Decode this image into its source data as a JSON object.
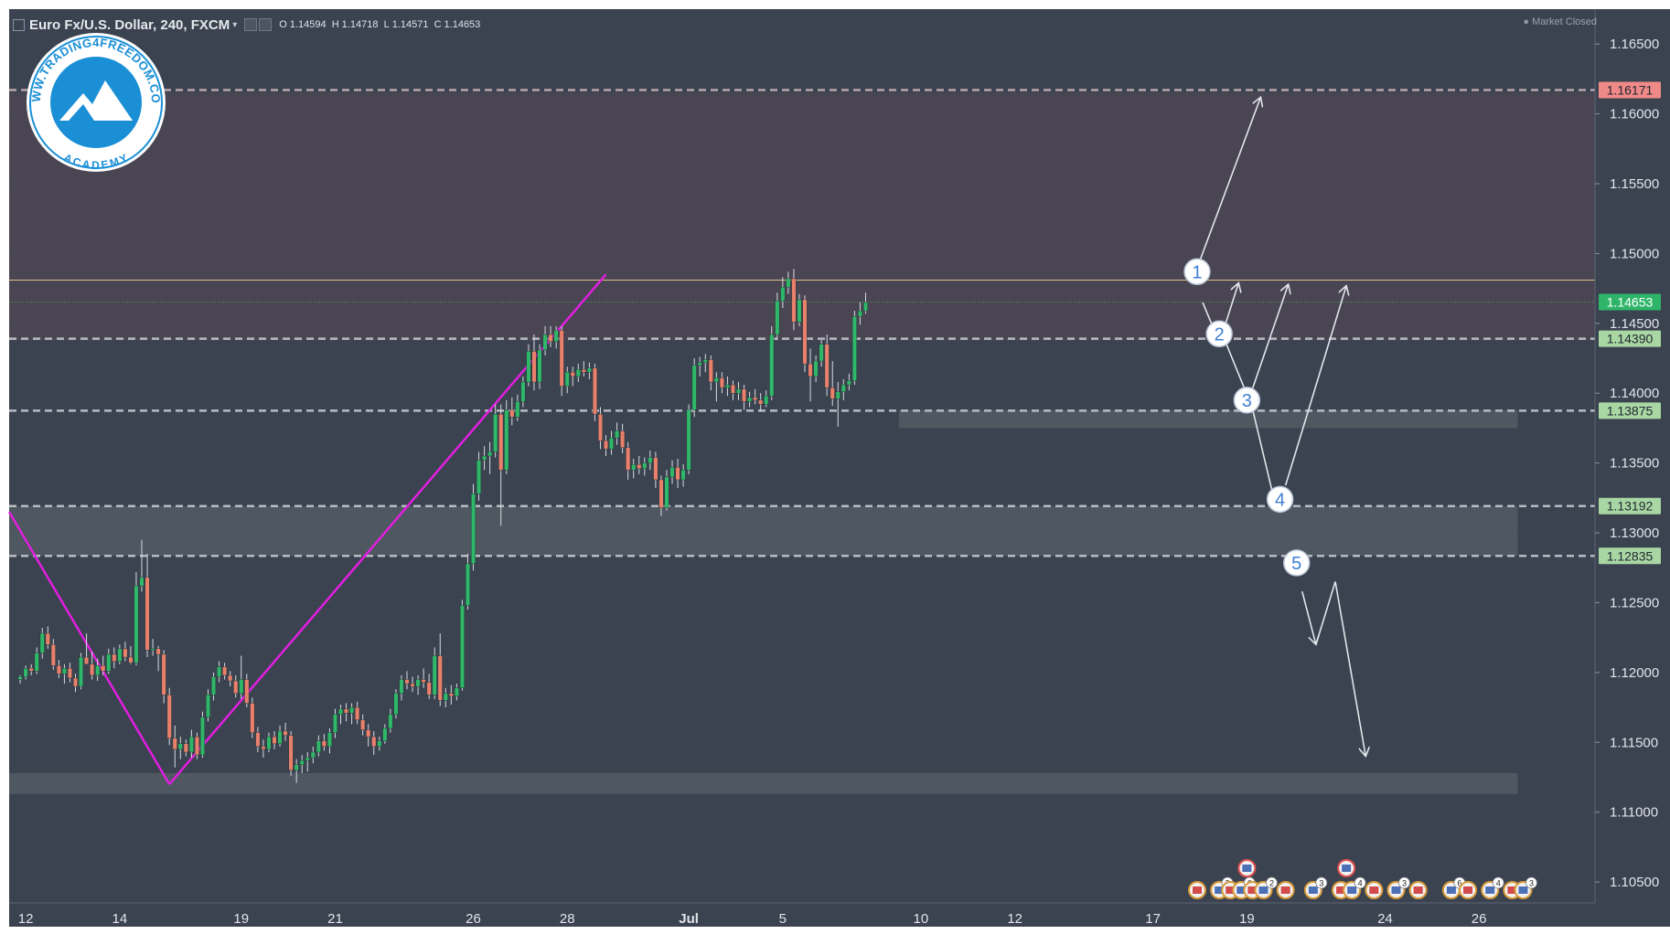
{
  "header": {
    "symbol": "Euro Fx/U.S. Dollar, 240, FXCM",
    "caret": "▾",
    "open_label": "O",
    "open_value": "1.14594",
    "high_label": "H",
    "high_value": "1.14718",
    "low_label": "L",
    "low_value": "1.14571",
    "close_label": "C",
    "close_value": "1.14653"
  },
  "market_status": {
    "dot": "●",
    "text": "Market Closed"
  },
  "logo": {
    "ring_text": "WWW.TRADING4FREEDOM.COM",
    "sub_text": "ACADEMY",
    "icon": "mountain-peaks-icon"
  },
  "colors": {
    "background": "#3b4350",
    "upper_zone": "#4a4552",
    "band_zone": "#505861",
    "candle_up": "#2fb76a",
    "candle_down": "#e8806c",
    "trendline": "#e21ee0",
    "arrows": "#e2e6ec",
    "resistance_line": "#d9c28a",
    "price_badge_red": "#f08a88",
    "price_badge_green": "#a9d7a3"
  },
  "chart_data": {
    "type": "candlestick",
    "title": "Euro Fx/U.S. Dollar, 240, FXCM",
    "ylim": [
      1.1035,
      1.1675
    ],
    "y_ticks": [
      "1.16500",
      "1.16000",
      "1.15500",
      "1.15000",
      "1.14500",
      "1.14000",
      "1.13500",
      "1.13000",
      "1.12500",
      "1.12000",
      "1.11500",
      "1.11000",
      "1.10500"
    ],
    "y_tick_values": [
      1.165,
      1.16,
      1.155,
      1.15,
      1.145,
      1.14,
      1.135,
      1.13,
      1.125,
      1.12,
      1.115,
      1.11,
      1.105
    ],
    "x_ticks": [
      {
        "label": "12",
        "bar": 1
      },
      {
        "label": "14",
        "bar": 18
      },
      {
        "label": "19",
        "bar": 40
      },
      {
        "label": "21",
        "bar": 57
      },
      {
        "label": "26",
        "bar": 82
      },
      {
        "label": "28",
        "bar": 99
      },
      {
        "label": "Jul",
        "bar": 121
      },
      {
        "label": "5",
        "bar": 138
      },
      {
        "label": "10",
        "bar": 163
      },
      {
        "label": "12",
        "bar": 180
      },
      {
        "label": "17",
        "bar": 205
      },
      {
        "label": "19",
        "bar": 222
      },
      {
        "label": "24",
        "bar": 247
      },
      {
        "label": "26",
        "bar": 264
      }
    ],
    "x_range_bars": [
      -2,
      285
    ],
    "price_levels": [
      {
        "value": 1.16171,
        "label": "1.16171",
        "style": "red"
      },
      {
        "value": 1.14653,
        "label": "1.14653",
        "style": "green-current"
      },
      {
        "value": 1.1439,
        "label": "1.14390",
        "style": "green"
      },
      {
        "value": 1.13875,
        "label": "1.13875",
        "style": "green"
      },
      {
        "value": 1.13192,
        "label": "1.13192",
        "style": "green"
      },
      {
        "value": 1.12835,
        "label": "1.12835",
        "style": "green"
      }
    ],
    "resistance_line": 1.1481,
    "zones": [
      {
        "from": 1.1481,
        "to": 1.1615,
        "kind": "upper"
      },
      {
        "from": 1.14375,
        "to": 1.1481,
        "kind": "upper"
      },
      {
        "from": 1.1375,
        "to": 1.1388,
        "kind": "band",
        "bar_from": 159,
        "bar_to": 271
      },
      {
        "from": 1.12835,
        "to": 1.1319,
        "kind": "band",
        "bar_from": -2,
        "bar_to": 271
      },
      {
        "from": 1.1113,
        "to": 1.1128,
        "kind": "band",
        "bar_from": -2,
        "bar_to": 271
      }
    ],
    "candles": [
      [
        1.1195,
        1.1198,
        1.1192,
        1.1197
      ],
      [
        1.1197,
        1.1205,
        1.1195,
        1.1203
      ],
      [
        1.1203,
        1.1206,
        1.1198,
        1.1201
      ],
      [
        1.1201,
        1.1218,
        1.1199,
        1.1214
      ],
      [
        1.1214,
        1.1232,
        1.121,
        1.1228
      ],
      [
        1.1228,
        1.1233,
        1.1217,
        1.122
      ],
      [
        1.122,
        1.1224,
        1.1202,
        1.1205
      ],
      [
        1.1205,
        1.1209,
        1.1196,
        1.1199
      ],
      [
        1.1199,
        1.1206,
        1.1192,
        1.1203
      ],
      [
        1.1203,
        1.1207,
        1.1193,
        1.1196
      ],
      [
        1.1196,
        1.1199,
        1.1186,
        1.119
      ],
      [
        1.119,
        1.1214,
        1.1188,
        1.1211
      ],
      [
        1.1211,
        1.1228,
        1.1209,
        1.1206
      ],
      [
        1.1206,
        1.1215,
        1.1195,
        1.1198
      ],
      [
        1.1198,
        1.121,
        1.1194,
        1.1205
      ],
      [
        1.1205,
        1.1212,
        1.1198,
        1.1201
      ],
      [
        1.1201,
        1.1217,
        1.1199,
        1.1213
      ],
      [
        1.1213,
        1.1218,
        1.1203,
        1.1208
      ],
      [
        1.1208,
        1.122,
        1.1206,
        1.1217
      ],
      [
        1.1217,
        1.1222,
        1.1208,
        1.1211
      ],
      [
        1.1211,
        1.1219,
        1.1206,
        1.1207
      ],
      [
        1.1207,
        1.1272,
        1.1205,
        1.1262
      ],
      [
        1.1262,
        1.1295,
        1.1258,
        1.1268
      ],
      [
        1.1268,
        1.1285,
        1.1211,
        1.1216
      ],
      [
        1.1216,
        1.1224,
        1.1212,
        1.1217
      ],
      [
        1.1217,
        1.1219,
        1.1201,
        1.1213
      ],
      [
        1.1213,
        1.1216,
        1.1178,
        1.1184
      ],
      [
        1.1184,
        1.1189,
        1.1148,
        1.1153
      ],
      [
        1.1153,
        1.1162,
        1.1132,
        1.1145
      ],
      [
        1.1145,
        1.1154,
        1.1138,
        1.1149
      ],
      [
        1.1149,
        1.1152,
        1.114,
        1.1143
      ],
      [
        1.1143,
        1.1159,
        1.1139,
        1.1154
      ],
      [
        1.1154,
        1.1157,
        1.1138,
        1.1141
      ],
      [
        1.1141,
        1.1172,
        1.1139,
        1.1168
      ],
      [
        1.1168,
        1.1188,
        1.1165,
        1.1184
      ],
      [
        1.1184,
        1.12,
        1.118,
        1.1197
      ],
      [
        1.1197,
        1.1208,
        1.1193,
        1.1204
      ],
      [
        1.1204,
        1.1207,
        1.1195,
        1.1198
      ],
      [
        1.1198,
        1.1201,
        1.119,
        1.1194
      ],
      [
        1.1194,
        1.1198,
        1.1182,
        1.1185
      ],
      [
        1.1185,
        1.1212,
        1.1181,
        1.1195
      ],
      [
        1.1195,
        1.1199,
        1.1175,
        1.1178
      ],
      [
        1.1178,
        1.1182,
        1.1153,
        1.1157
      ],
      [
        1.1157,
        1.1161,
        1.1143,
        1.1147
      ],
      [
        1.1147,
        1.1152,
        1.1139,
        1.1145
      ],
      [
        1.1145,
        1.1157,
        1.1143,
        1.1154
      ],
      [
        1.1154,
        1.1158,
        1.1145,
        1.1149
      ],
      [
        1.1149,
        1.1162,
        1.1147,
        1.1158
      ],
      [
        1.1158,
        1.1164,
        1.1151,
        1.1155
      ],
      [
        1.1155,
        1.1158,
        1.1126,
        1.113
      ],
      [
        1.113,
        1.1138,
        1.1121,
        1.1134
      ],
      [
        1.1134,
        1.1141,
        1.1128,
        1.1137
      ],
      [
        1.1137,
        1.1143,
        1.1129,
        1.1139
      ],
      [
        1.1139,
        1.1147,
        1.1135,
        1.1143
      ],
      [
        1.1143,
        1.1155,
        1.114,
        1.1151
      ],
      [
        1.1151,
        1.1156,
        1.1144,
        1.1147
      ],
      [
        1.1147,
        1.116,
        1.1142,
        1.1157
      ],
      [
        1.1157,
        1.1174,
        1.1153,
        1.117
      ],
      [
        1.117,
        1.1177,
        1.1163,
        1.1174
      ],
      [
        1.1174,
        1.1178,
        1.1165,
        1.1171
      ],
      [
        1.1171,
        1.1178,
        1.1163,
        1.1175
      ],
      [
        1.1175,
        1.1179,
        1.1163,
        1.1166
      ],
      [
        1.1166,
        1.117,
        1.1155,
        1.1159
      ],
      [
        1.1159,
        1.1163,
        1.1147,
        1.1154
      ],
      [
        1.1154,
        1.1158,
        1.1141,
        1.1147
      ],
      [
        1.1147,
        1.1154,
        1.1144,
        1.1151
      ],
      [
        1.1151,
        1.1163,
        1.1149,
        1.116
      ],
      [
        1.116,
        1.1174,
        1.1157,
        1.117
      ],
      [
        1.117,
        1.1188,
        1.1167,
        1.1185
      ],
      [
        1.1185,
        1.1198,
        1.118,
        1.1195
      ],
      [
        1.1195,
        1.1201,
        1.1188,
        1.1192
      ],
      [
        1.1192,
        1.1197,
        1.1186,
        1.119
      ],
      [
        1.119,
        1.1198,
        1.1184,
        1.1195
      ],
      [
        1.1195,
        1.1203,
        1.1189,
        1.1193
      ],
      [
        1.1193,
        1.1199,
        1.1181,
        1.1184
      ],
      [
        1.1184,
        1.1218,
        1.1181,
        1.1212
      ],
      [
        1.1212,
        1.1228,
        1.1176,
        1.118
      ],
      [
        1.118,
        1.1189,
        1.1175,
        1.1185
      ],
      [
        1.1185,
        1.1191,
        1.1177,
        1.1183
      ],
      [
        1.1183,
        1.1192,
        1.118,
        1.1189
      ],
      [
        1.1189,
        1.1252,
        1.1187,
        1.1248
      ],
      [
        1.1248,
        1.1285,
        1.1245,
        1.1278
      ],
      [
        1.1278,
        1.1335,
        1.1273,
        1.1328
      ],
      [
        1.1328,
        1.1358,
        1.1323,
        1.1352
      ],
      [
        1.1352,
        1.1362,
        1.1345,
        1.1355
      ],
      [
        1.1355,
        1.1365,
        1.1342,
        1.1358
      ],
      [
        1.1358,
        1.1392,
        1.1354,
        1.1385
      ],
      [
        1.1385,
        1.1392,
        1.1305,
        1.1345
      ],
      [
        1.1345,
        1.1395,
        1.1342,
        1.1388
      ],
      [
        1.1388,
        1.1397,
        1.1377,
        1.1383
      ],
      [
        1.1383,
        1.1399,
        1.138,
        1.1394
      ],
      [
        1.1394,
        1.1412,
        1.139,
        1.1408
      ],
      [
        1.1408,
        1.1435,
        1.1405,
        1.143
      ],
      [
        1.143,
        1.1442,
        1.1402,
        1.1408
      ],
      [
        1.1408,
        1.1435,
        1.1403,
        1.1431
      ],
      [
        1.1431,
        1.1448,
        1.1427,
        1.1442
      ],
      [
        1.1442,
        1.1448,
        1.1433,
        1.1437
      ],
      [
        1.1437,
        1.1448,
        1.1432,
        1.1445
      ],
      [
        1.1445,
        1.1448,
        1.1398,
        1.1405
      ],
      [
        1.1405,
        1.1419,
        1.14,
        1.1415
      ],
      [
        1.1415,
        1.1419,
        1.1405,
        1.1412
      ],
      [
        1.1412,
        1.1421,
        1.1408,
        1.1417
      ],
      [
        1.1417,
        1.1423,
        1.1412,
        1.1415
      ],
      [
        1.1415,
        1.1422,
        1.141,
        1.1418
      ],
      [
        1.1418,
        1.1421,
        1.138,
        1.1385
      ],
      [
        1.1385,
        1.139,
        1.136,
        1.1366
      ],
      [
        1.1366,
        1.137,
        1.1355,
        1.136
      ],
      [
        1.136,
        1.1373,
        1.1356,
        1.1368
      ],
      [
        1.1368,
        1.1379,
        1.1363,
        1.1373
      ],
      [
        1.1373,
        1.1378,
        1.1357,
        1.1361
      ],
      [
        1.1361,
        1.1365,
        1.1338,
        1.1345
      ],
      [
        1.1345,
        1.1353,
        1.1339,
        1.1349
      ],
      [
        1.1349,
        1.1355,
        1.1342,
        1.1346
      ],
      [
        1.1346,
        1.1354,
        1.1341,
        1.135
      ],
      [
        1.135,
        1.1359,
        1.1345,
        1.1354
      ],
      [
        1.1354,
        1.1358,
        1.1332,
        1.1338
      ],
      [
        1.1338,
        1.1341,
        1.1312,
        1.1318
      ],
      [
        1.1318,
        1.1345,
        1.1316,
        1.134
      ],
      [
        1.134,
        1.1352,
        1.1335,
        1.1347
      ],
      [
        1.1347,
        1.1353,
        1.1332,
        1.1338
      ],
      [
        1.1338,
        1.1349,
        1.1333,
        1.1345
      ],
      [
        1.1345,
        1.1392,
        1.1342,
        1.1388
      ],
      [
        1.1388,
        1.1425,
        1.1383,
        1.142
      ],
      [
        1.142,
        1.1426,
        1.1412,
        1.1422
      ],
      [
        1.1422,
        1.1428,
        1.1415,
        1.1424
      ],
      [
        1.1424,
        1.1427,
        1.1402,
        1.1408
      ],
      [
        1.1408,
        1.1415,
        1.1394,
        1.1411
      ],
      [
        1.1411,
        1.1415,
        1.14,
        1.1404
      ],
      [
        1.1404,
        1.1412,
        1.1398,
        1.1406
      ],
      [
        1.1406,
        1.1409,
        1.1395,
        1.14
      ],
      [
        1.14,
        1.1408,
        1.1395,
        1.1403
      ],
      [
        1.1403,
        1.1406,
        1.1388,
        1.1394
      ],
      [
        1.1394,
        1.1401,
        1.139,
        1.1397
      ],
      [
        1.1397,
        1.1403,
        1.1392,
        1.1395
      ],
      [
        1.1395,
        1.14,
        1.1387,
        1.1392
      ],
      [
        1.1392,
        1.1402,
        1.139,
        1.1398
      ],
      [
        1.1398,
        1.1448,
        1.1395,
        1.1442
      ],
      [
        1.1442,
        1.1472,
        1.1438,
        1.1466
      ],
      [
        1.1466,
        1.1483,
        1.1461,
        1.1476
      ],
      [
        1.1476,
        1.1487,
        1.1471,
        1.1482
      ],
      [
        1.1482,
        1.1489,
        1.1445,
        1.1451
      ],
      [
        1.1451,
        1.1471,
        1.1448,
        1.1467
      ],
      [
        1.1467,
        1.147,
        1.1415,
        1.1421
      ],
      [
        1.1421,
        1.1432,
        1.1394,
        1.1412
      ],
      [
        1.1412,
        1.1427,
        1.1408,
        1.1423
      ],
      [
        1.1423,
        1.1438,
        1.1419,
        1.1435
      ],
      [
        1.1435,
        1.1442,
        1.1398,
        1.1404
      ],
      [
        1.1404,
        1.1423,
        1.1391,
        1.1396
      ],
      [
        1.1396,
        1.1408,
        1.1376,
        1.1401
      ],
      [
        1.1401,
        1.141,
        1.1395,
        1.1406
      ],
      [
        1.1406,
        1.1414,
        1.1402,
        1.1409
      ],
      [
        1.1409,
        1.1459,
        1.1406,
        1.1455
      ],
      [
        1.1455,
        1.1465,
        1.1449,
        1.1459
      ],
      [
        1.1459,
        1.1472,
        1.1457,
        1.1465
      ]
    ],
    "trendlines": [
      {
        "points": [
          [
            -2,
            1.1315
          ],
          [
            27,
            1.112
          ]
        ],
        "color": "magenta"
      },
      {
        "points": [
          [
            27,
            1.112
          ],
          [
            106,
            1.1485
          ]
        ],
        "color": "magenta"
      }
    ],
    "scenario_markers": [
      {
        "label": "1",
        "bar": 213,
        "price": 1.1487
      },
      {
        "label": "2",
        "bar": 217,
        "price": 1.14425
      },
      {
        "label": "3",
        "bar": 222,
        "price": 1.1395
      },
      {
        "label": "4",
        "bar": 228,
        "price": 1.1324
      },
      {
        "label": "5",
        "bar": 231,
        "price": 1.12785
      }
    ],
    "scenario_arrows": [
      [
        [
          213.5,
          1.1495
        ],
        [
          224.5,
          1.1612
        ]
      ],
      [
        [
          214,
          1.1465
        ],
        [
          216,
          1.1446
        ]
      ],
      [
        [
          218,
          1.1448
        ],
        [
          220.5,
          1.1479
        ]
      ],
      [
        [
          218,
          1.1438
        ],
        [
          221.7,
          1.1402
        ]
      ],
      [
        [
          223,
          1.1403
        ],
        [
          229.5,
          1.1478
        ]
      ],
      [
        [
          223,
          1.1389
        ],
        [
          226.5,
          1.1331
        ]
      ],
      [
        [
          229,
          1.1334
        ],
        [
          240,
          1.1477
        ]
      ],
      [
        [
          232,
          1.1258
        ],
        [
          234.5,
          1.122
        ]
      ],
      [
        [
          234.5,
          1.122
        ],
        [
          238,
          1.1265
        ]
      ],
      [
        [
          238,
          1.1265
        ],
        [
          243.5,
          1.114
        ]
      ]
    ],
    "event_counts": [
      "3",
      "6",
      "2",
      "3",
      "4",
      "3",
      "6",
      "4",
      "3",
      "6",
      "2",
      "2"
    ]
  }
}
